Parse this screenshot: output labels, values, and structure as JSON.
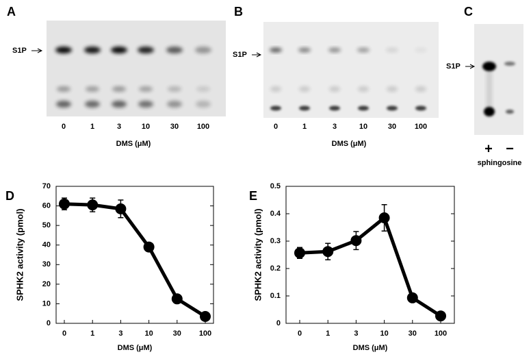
{
  "panels": {
    "A": {
      "label": "A",
      "marker": "S1P",
      "lanes": [
        "0",
        "1",
        "3",
        "10",
        "30",
        "100"
      ],
      "xlabel": "DMS (μM)"
    },
    "B": {
      "label": "B",
      "marker": "S1P",
      "lanes": [
        "0",
        "1",
        "3",
        "10",
        "30",
        "100"
      ],
      "xlabel": "DMS (μM)"
    },
    "C": {
      "label": "C",
      "marker": "S1P",
      "lanes": [
        "+",
        "−"
      ],
      "caption": "sphingosine"
    }
  },
  "chart_data": [
    {
      "type": "line",
      "label": "D",
      "ylabel": "SPHK2 activity (pmol)",
      "xlabel": "DMS (μM)",
      "categories": [
        "0",
        "1",
        "3",
        "10",
        "30",
        "100"
      ],
      "series": [
        {
          "color": "#000000",
          "values": [
            61,
            60.5,
            58.5,
            39,
            12.5,
            3.5
          ],
          "errors": [
            3,
            3.5,
            4.5,
            1,
            1,
            1
          ]
        }
      ],
      "ylim": [
        0,
        70
      ],
      "yticks": [
        0,
        10,
        20,
        30,
        40,
        50,
        60,
        70
      ]
    },
    {
      "type": "line",
      "label": "E",
      "ylabel": "SPHK2 activity (pmol)",
      "xlabel": "DMS (μM)",
      "categories": [
        "0",
        "1",
        "3",
        "10",
        "30",
        "100"
      ],
      "series": [
        {
          "color": "#000000",
          "values": [
            0.257,
            0.262,
            0.302,
            0.385,
            0.093,
            0.027
          ],
          "errors": [
            0.02,
            0.03,
            0.033,
            0.048,
            0.012,
            0.005
          ]
        }
      ],
      "ylim": [
        0,
        0.5
      ],
      "yticks": [
        0,
        0.1,
        0.2,
        0.3,
        0.4,
        0.5
      ]
    }
  ]
}
